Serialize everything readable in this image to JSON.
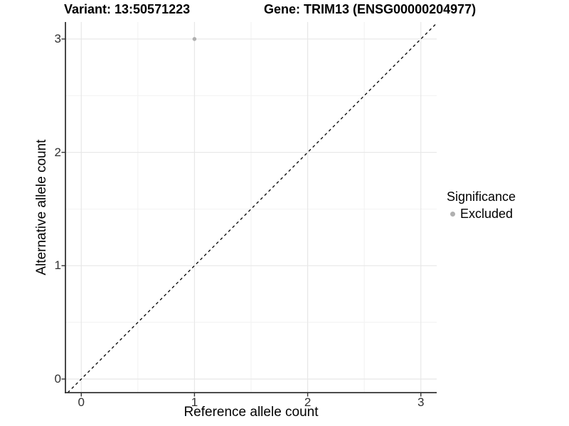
{
  "header": {
    "variant_title": "Variant: 13:50571223",
    "gene_title": "Gene: TRIM13 (ENSG00000204977)"
  },
  "axes": {
    "x": {
      "label": "Reference allele count",
      "tick_labels": [
        "0",
        "1",
        "2",
        "3"
      ]
    },
    "y": {
      "label": "Alternative allele count",
      "tick_labels": [
        "0",
        "1",
        "2",
        "3"
      ]
    }
  },
  "legend": {
    "title": "Significance",
    "items": [
      {
        "label": "Excluded",
        "color": "#b0b0b0"
      }
    ]
  },
  "colors": {
    "background": "#ffffff",
    "point": "#b0b0b0",
    "grid_major": "#e7e7e7",
    "grid_minor": "#f2f2f2",
    "axis_line": "#333333",
    "tick_mark": "#333333",
    "reference_line": "#000000"
  },
  "chart_data": {
    "type": "scatter",
    "title": "Variant: 13:50571223 / Gene: TRIM13 (ENSG00000204977)",
    "xlabel": "Reference allele count",
    "ylabel": "Alternative allele count",
    "xlim": [
      -0.14,
      3.14
    ],
    "ylim": [
      -0.12,
      3.15
    ],
    "xticks": [
      0,
      1,
      2,
      3
    ],
    "yticks": [
      0,
      1,
      2,
      3
    ],
    "xticks_minor": [
      0.5,
      1.5,
      2.5
    ],
    "yticks_minor": [
      0.5,
      1.5,
      2.5
    ],
    "grid": "major integer and minor half-integer gridlines, light grey on white",
    "legend_position": "right",
    "series": [
      {
        "name": "Excluded",
        "color": "#b0b0b0",
        "points": [
          {
            "x": 1,
            "y": 3
          }
        ]
      }
    ],
    "reference_line": {
      "equation": "y = x",
      "style": "dashed",
      "color": "#000000"
    }
  }
}
